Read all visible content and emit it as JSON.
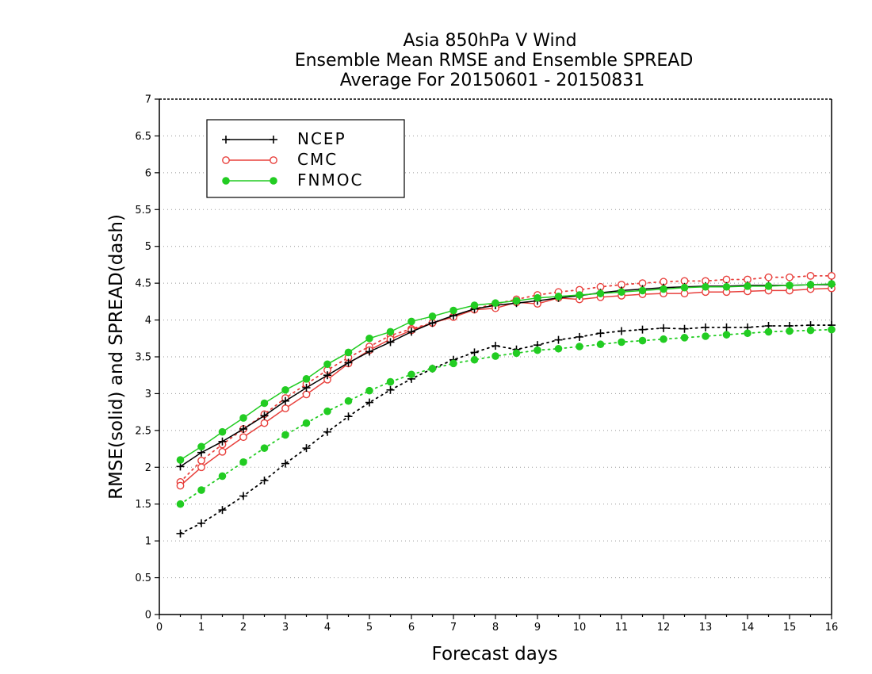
{
  "chart_data": {
    "type": "line",
    "title_lines": [
      "Asia 850hPa V Wind",
      "Ensemble Mean RMSE and Ensemble SPREAD",
      "Average For 20150601 - 20150831"
    ],
    "xlabel": "Forecast days",
    "ylabel": "RMSE(solid) and SPREAD(dash)",
    "xlim": [
      0,
      16
    ],
    "ylim": [
      0,
      7
    ],
    "x_ticks": [
      "0",
      "1",
      "2",
      "3",
      "4",
      "5",
      "6",
      "7",
      "8",
      "9",
      "10",
      "11",
      "12",
      "13",
      "14",
      "15",
      "16"
    ],
    "y_ticks": [
      "0",
      "0.5",
      "1",
      "1.5",
      "2",
      "2.5",
      "3",
      "3.5",
      "4",
      "4.5",
      "5",
      "5.5",
      "6",
      "6.5",
      "7"
    ],
    "grid": "horizontal dotted",
    "legend_position": "top-left",
    "x": [
      0.5,
      1,
      1.5,
      2,
      2.5,
      3,
      3.5,
      4,
      4.5,
      5,
      5.5,
      6,
      6.5,
      7,
      7.5,
      8,
      8.5,
      9,
      9.5,
      10,
      10.5,
      11,
      11.5,
      12,
      12.5,
      13,
      13.5,
      14,
      14.5,
      15,
      15.5,
      16
    ],
    "series": [
      {
        "name": "NCEP",
        "marker": "plus",
        "color": "#000000",
        "rmse": [
          2.01,
          2.2,
          2.35,
          2.52,
          2.7,
          2.9,
          3.08,
          3.25,
          3.42,
          3.57,
          3.7,
          3.84,
          3.96,
          4.06,
          4.15,
          4.2,
          4.23,
          4.26,
          4.3,
          4.33,
          4.37,
          4.4,
          4.42,
          4.44,
          4.45,
          4.46,
          4.46,
          4.47,
          4.47,
          4.47,
          4.48,
          4.48
        ],
        "spread": [
          1.1,
          1.24,
          1.42,
          1.61,
          1.82,
          2.05,
          2.26,
          2.48,
          2.69,
          2.88,
          3.05,
          3.2,
          3.34,
          3.46,
          3.56,
          3.65,
          3.6,
          3.66,
          3.73,
          3.77,
          3.82,
          3.85,
          3.87,
          3.89,
          3.88,
          3.9,
          3.9,
          3.9,
          3.92,
          3.92,
          3.93,
          3.93
        ]
      },
      {
        "name": "CMC",
        "marker": "open-circle",
        "color": "#e8403c",
        "rmse": [
          1.75,
          2.0,
          2.21,
          2.41,
          2.6,
          2.8,
          2.99,
          3.19,
          3.41,
          3.59,
          3.74,
          3.86,
          3.96,
          4.04,
          4.14,
          4.16,
          4.24,
          4.22,
          4.3,
          4.28,
          4.31,
          4.33,
          4.35,
          4.36,
          4.36,
          4.38,
          4.38,
          4.39,
          4.4,
          4.4,
          4.42,
          4.43
        ],
        "spread": [
          1.8,
          2.09,
          2.31,
          2.52,
          2.72,
          2.94,
          3.13,
          3.32,
          3.49,
          3.64,
          3.79,
          3.88,
          3.96,
          4.05,
          4.15,
          4.22,
          4.28,
          4.34,
          4.38,
          4.41,
          4.45,
          4.48,
          4.5,
          4.52,
          4.53,
          4.53,
          4.55,
          4.55,
          4.58,
          4.58,
          4.6,
          4.6
        ]
      },
      {
        "name": "FNMOC",
        "marker": "filled-circle",
        "color": "#22cc22",
        "rmse": [
          2.1,
          2.28,
          2.48,
          2.67,
          2.87,
          3.05,
          3.2,
          3.4,
          3.56,
          3.75,
          3.84,
          3.98,
          4.05,
          4.13,
          4.2,
          4.23,
          4.26,
          4.3,
          4.32,
          4.34,
          4.36,
          4.38,
          4.4,
          4.42,
          4.44,
          4.45,
          4.45,
          4.46,
          4.46,
          4.47,
          4.48,
          4.49
        ],
        "spread": [
          1.5,
          1.69,
          1.88,
          2.07,
          2.26,
          2.44,
          2.6,
          2.76,
          2.9,
          3.04,
          3.16,
          3.26,
          3.34,
          3.41,
          3.46,
          3.51,
          3.55,
          3.59,
          3.61,
          3.64,
          3.67,
          3.7,
          3.72,
          3.74,
          3.76,
          3.78,
          3.8,
          3.82,
          3.84,
          3.85,
          3.86,
          3.87
        ]
      }
    ]
  }
}
